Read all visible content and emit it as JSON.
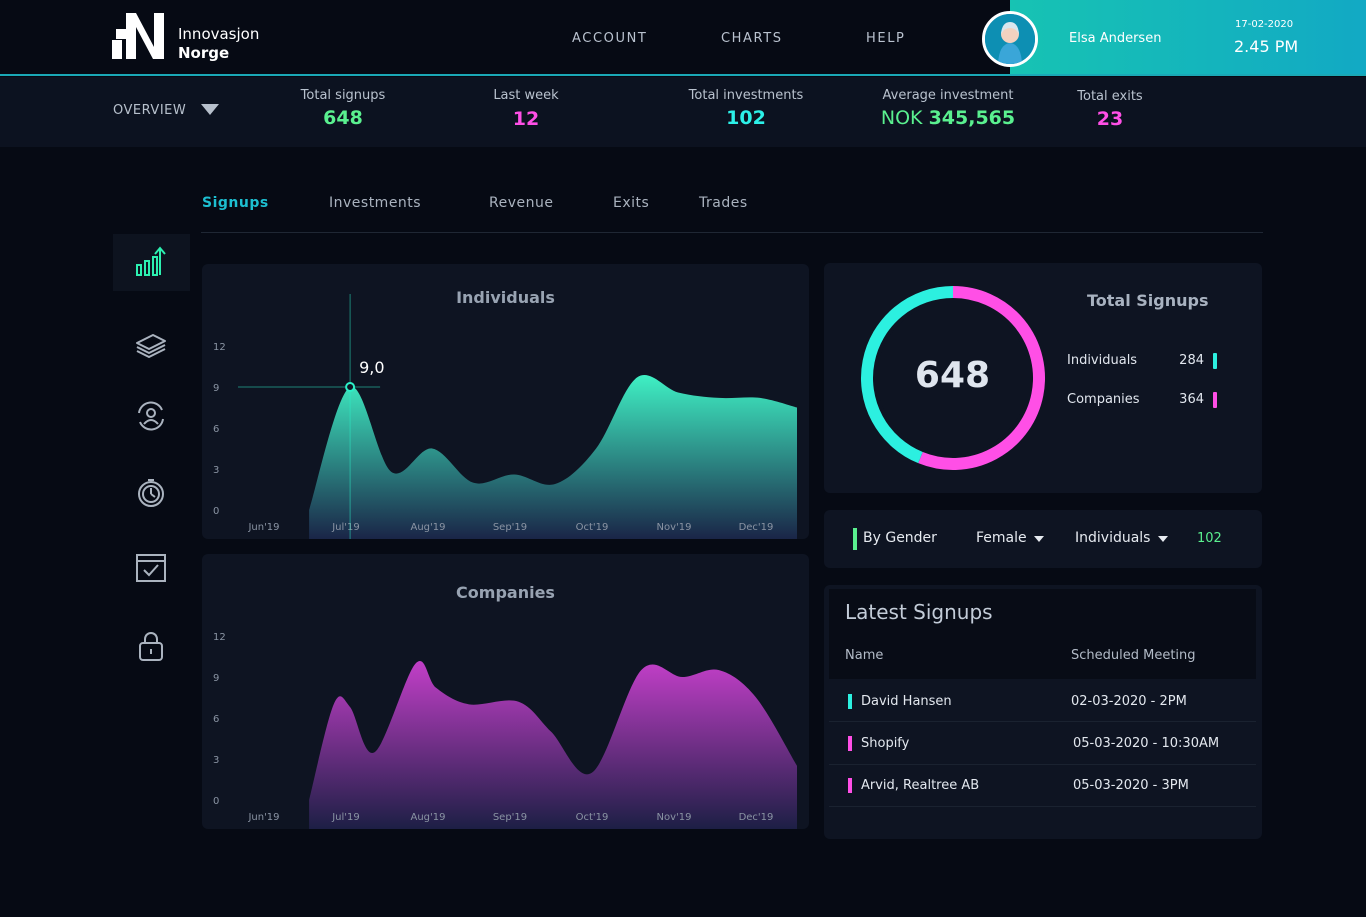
{
  "brand": {
    "line1": "Innovasjon",
    "line2": "Norge"
  },
  "nav": {
    "account": "ACCOUNT",
    "charts": "CHARTS",
    "help": "HELP"
  },
  "user": {
    "name": "Elsa Andersen",
    "date": "17-02-2020",
    "time": "2.45 PM"
  },
  "overview": {
    "label": "OVERVIEW"
  },
  "stats": {
    "signups": {
      "label": "Total signups",
      "value": "648"
    },
    "last_week": {
      "label": "Last week",
      "value": "12"
    },
    "investments": {
      "label": "Total investments",
      "value": "102"
    },
    "avg": {
      "label": "Average investment",
      "prefix": "NOK",
      "value": "345,565"
    },
    "exits": {
      "label": "Total exits",
      "value": "23"
    }
  },
  "tabs": {
    "signups": "Signups",
    "investments": "Investments",
    "revenue": "Revenue",
    "exits": "Exits",
    "trades": "Trades"
  },
  "colors": {
    "teal": "#2cf0c8",
    "magenta": "#ff4fe6",
    "green": "#5af08f",
    "cyan": "#1dbfd1"
  },
  "chart_data": [
    {
      "type": "area",
      "title": "Individuals",
      "categories": [
        "Jun'19",
        "Jul'19",
        "Aug'19",
        "Sep'19",
        "Oct'19",
        "Nov'19",
        "Dec'19"
      ],
      "yticks": [
        "0",
        "3",
        "6",
        "9",
        "12"
      ],
      "ylim": [
        0,
        12
      ],
      "series": [
        {
          "x": [
            0.55,
            1.05,
            1.55,
            2.05,
            2.55,
            3.05,
            3.55,
            4.05,
            4.55,
            5.05,
            5.55,
            6.05,
            6.5
          ],
          "values": [
            0,
            9,
            2.8,
            4.5,
            2,
            2.6,
            1.9,
            4.5,
            9.7,
            8.6,
            8.2,
            8.2,
            7.5
          ]
        }
      ],
      "highlight": {
        "label": "9,0",
        "x": 1.05,
        "value": 9
      }
    },
    {
      "type": "area",
      "title": "Companies",
      "categories": [
        "Jun'19",
        "Jul'19",
        "Aug'19",
        "Sep'19",
        "Oct'19",
        "Nov'19",
        "Dec'19"
      ],
      "yticks": [
        "0",
        "3",
        "6",
        "9",
        "12"
      ],
      "ylim": [
        0,
        12
      ],
      "series": [
        {
          "x": [
            0.55,
            0.85,
            1.05,
            1.35,
            1.85,
            2.1,
            2.5,
            3.1,
            3.5,
            4.0,
            4.6,
            5.1,
            5.55,
            6.0,
            6.5
          ],
          "values": [
            0,
            7,
            6.8,
            3.5,
            10,
            8.2,
            7,
            7.2,
            5,
            2,
            9.5,
            9,
            9.5,
            7.5,
            2.5
          ]
        }
      ]
    },
    {
      "type": "pie",
      "title": "Total Signups",
      "total": "648",
      "categories": [
        "Individuals",
        "Companies"
      ],
      "values": [
        284,
        364
      ],
      "colors": [
        "#2cf0e0",
        "#ff4fe6"
      ]
    }
  ],
  "filter": {
    "by": "By Gender",
    "gender": "Female",
    "type": "Individuals",
    "count": "102"
  },
  "latest": {
    "title": "Latest Signups",
    "headers": {
      "name": "Name",
      "meeting": "Scheduled Meeting"
    },
    "rows": [
      {
        "name": "David Hansen",
        "meeting": "02-03-2020 - 2PM",
        "color": "#2cf0e0"
      },
      {
        "name": "Shopify",
        "meeting": "05-03-2020 - 10:30AM",
        "color": "#ff4fe6"
      },
      {
        "name": "Arvid, Realtree AB",
        "meeting": "05-03-2020 - 3PM",
        "color": "#ff4fe6"
      }
    ]
  },
  "icons": [
    "chart-growth-icon",
    "money-stack-icon",
    "user-cycle-icon",
    "timer-icon",
    "calendar-check-icon",
    "lock-icon"
  ]
}
